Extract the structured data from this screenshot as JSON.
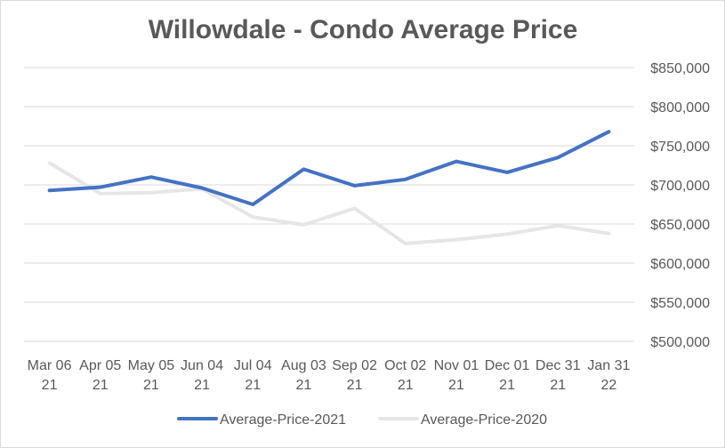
{
  "chart_data": {
    "type": "line",
    "title": "Willowdale - Condo Average Price",
    "categories": [
      [
        "Mar 06",
        "21"
      ],
      [
        "Apr 05",
        "21"
      ],
      [
        "May 05",
        "21"
      ],
      [
        "Jun 04",
        "21"
      ],
      [
        "Jul 04",
        "21"
      ],
      [
        "Aug 03",
        "21"
      ],
      [
        "Sep 02",
        "21"
      ],
      [
        "Oct 02",
        "21"
      ],
      [
        "Nov 01",
        "21"
      ],
      [
        "Dec 01",
        "21"
      ],
      [
        "Dec 31",
        "21"
      ],
      [
        "Jan 31",
        "22"
      ]
    ],
    "yticks": [
      500000,
      550000,
      600000,
      650000,
      700000,
      750000,
      800000,
      850000
    ],
    "ytick_labels": [
      "$500,000",
      "$550,000",
      "$600,000",
      "$650,000",
      "$700,000",
      "$750,000",
      "$800,000",
      "$850,000"
    ],
    "ylim": [
      500000,
      850000
    ],
    "yaxis_position": "right",
    "grid": true,
    "legend_position": "bottom",
    "series": [
      {
        "name": "Average-Price-2021",
        "color": "#4472c4",
        "values": [
          693000,
          697000,
          710000,
          696000,
          675000,
          720000,
          699000,
          707000,
          730000,
          716000,
          735000,
          768000
        ]
      },
      {
        "name": "Average-Price-2020",
        "color": "#e7e6e6",
        "values": [
          728000,
          689000,
          690000,
          695000,
          659000,
          649000,
          670000,
          625000,
          630000,
          637000,
          648000,
          638000
        ]
      }
    ]
  }
}
